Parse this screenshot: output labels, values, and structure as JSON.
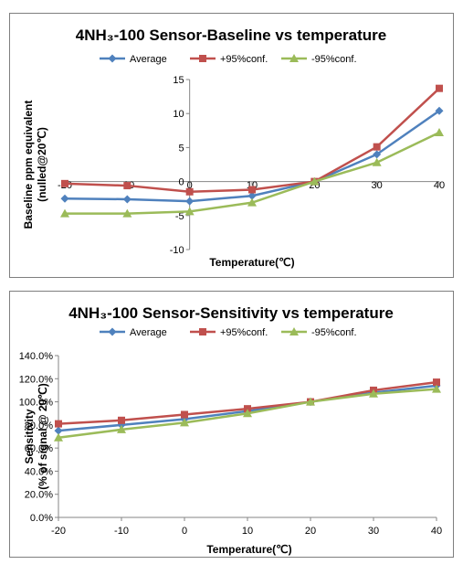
{
  "chart_data": [
    {
      "type": "line",
      "title": "4NH₃-100 Sensor-Baseline vs temperature",
      "xlabel": "Temperature(℃)",
      "ylabel": [
        "Baseline ppm equivalent",
        "(nulled@20℃)"
      ],
      "x": [
        -20,
        -10,
        0,
        10,
        20,
        30,
        40
      ],
      "xticks": [
        "-20",
        "-10",
        "0",
        "10",
        "20",
        "30",
        "40"
      ],
      "ylim": [
        -10,
        15
      ],
      "yticks": [
        "-10",
        "-5",
        "0",
        "5",
        "10",
        "15"
      ],
      "legend_position": "top",
      "grid": false,
      "series": [
        {
          "name": "Average",
          "color": "#4f81bd",
          "marker": "diamond",
          "values": [
            -2.5,
            -2.6,
            -2.9,
            -2.1,
            0,
            4,
            10.4
          ]
        },
        {
          "name": "+95%conf.",
          "color": "#c0504d",
          "marker": "square",
          "values": [
            -0.3,
            -0.6,
            -1.5,
            -1.2,
            0,
            5.1,
            13.7
          ]
        },
        {
          "name": "-95%conf.",
          "color": "#9bbb59",
          "marker": "triangle",
          "values": [
            -4.7,
            -4.7,
            -4.4,
            -3.1,
            0,
            2.8,
            7.2
          ]
        }
      ]
    },
    {
      "type": "line",
      "title": "4NH₃-100 Sensor-Sensitivity vs temperature",
      "xlabel": "Temperature(℃)",
      "ylabel": [
        "Sensitivity",
        "(% of signal @ 20℃)"
      ],
      "x": [
        -20,
        -10,
        0,
        10,
        20,
        30,
        40
      ],
      "xticks": [
        "-20",
        "-10",
        "0",
        "10",
        "20",
        "30",
        "40"
      ],
      "ylim": [
        0,
        140
      ],
      "yticks": [
        "0.0%",
        "20.0%",
        "40.0%",
        "60.0%",
        "80.0%",
        "100.0%",
        "120.0%",
        "140.0%"
      ],
      "legend_position": "top",
      "grid": false,
      "series": [
        {
          "name": "Average",
          "color": "#4f81bd",
          "marker": "diamond",
          "values": [
            75,
            80,
            85,
            92,
            100,
            108,
            114
          ]
        },
        {
          "name": "+95%conf.",
          "color": "#c0504d",
          "marker": "square",
          "values": [
            81,
            84,
            89,
            94,
            100,
            110,
            117
          ]
        },
        {
          "name": "-95%conf.",
          "color": "#9bbb59",
          "marker": "triangle",
          "values": [
            69,
            76,
            82,
            90,
            100,
            107,
            111
          ]
        }
      ]
    }
  ]
}
